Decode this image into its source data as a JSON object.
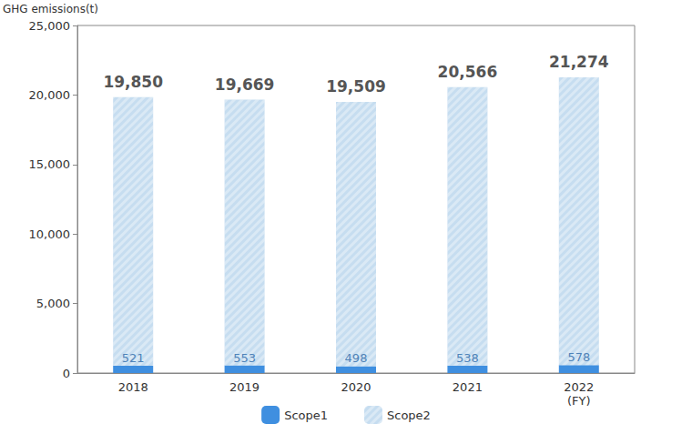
{
  "chart_data": {
    "type": "bar",
    "y_label": "GHG emissions(t)",
    "categories": [
      "2018",
      "2019",
      "2020",
      "2021",
      "2022\n(FY)"
    ],
    "stacked": true,
    "series": [
      {
        "name": "Scope1",
        "color": "#3f8fe0",
        "values": [
          521,
          553,
          498,
          538,
          578
        ],
        "data_labels": true
      },
      {
        "name": "Scope2",
        "color": "#c6ddf0",
        "values": [
          19329,
          19116,
          19011,
          20028,
          20696
        ]
      }
    ],
    "totals": [
      19850,
      19669,
      19509,
      20566,
      21274
    ],
    "total_labels": [
      "19,850",
      "19,669",
      "19,509",
      "20,566",
      "21,274"
    ],
    "ylim": [
      0,
      25000
    ],
    "yticks": [
      0,
      {
        "value": 5000,
        "label": "5,000"
      },
      {
        "value": 10000,
        "label": "10,000"
      },
      {
        "value": 15000,
        "label": "15,000"
      },
      {
        "value": 20000,
        "label": "20,000"
      },
      {
        "value": 25000,
        "label": "25,000"
      }
    ],
    "grid": false,
    "legend": "bottom"
  }
}
